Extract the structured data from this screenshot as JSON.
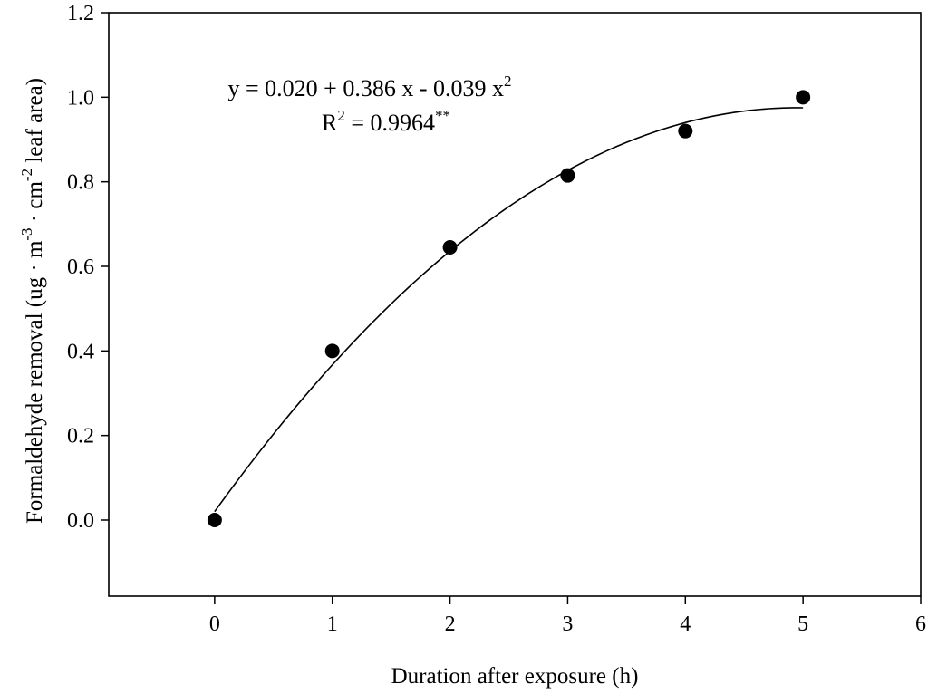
{
  "chart_data": {
    "type": "scatter",
    "title": "",
    "xlabel": "Duration after exposure (h)",
    "ylabel": {
      "prefix": "Formaldehyde removal (ug · m",
      "exp1": "-3",
      "middle": " · cm",
      "exp2": "-2",
      "suffix": " leaf area)"
    },
    "xlim": [
      -0.9,
      6
    ],
    "ylim": [
      -0.18,
      1.2
    ],
    "xticks": [
      0,
      1,
      2,
      3,
      4,
      5,
      6
    ],
    "yticks": [
      0.0,
      0.2,
      0.4,
      0.6,
      0.8,
      1.0,
      1.2
    ],
    "xtick_labels": [
      "0",
      "1",
      "2",
      "3",
      "4",
      "5",
      "6"
    ],
    "ytick_labels": [
      "0.0",
      "0.2",
      "0.4",
      "0.6",
      "0.8",
      "1.0",
      "1.2"
    ],
    "grid": false,
    "legend": "none",
    "series": [
      {
        "x": [
          0,
          1,
          2,
          3,
          4,
          5
        ],
        "y": [
          0.0,
          0.4,
          0.645,
          0.815,
          0.92,
          1.0
        ],
        "marker": "filled-circle",
        "color": "#000000"
      }
    ],
    "fit": {
      "type": "quadratic",
      "coefficients": [
        0.02,
        0.386,
        -0.039
      ],
      "x_range": [
        0,
        5
      ],
      "color": "#000000",
      "equation": {
        "prefix": "y = 0.020 + 0.386 x - 0.039 x",
        "exp": "2"
      },
      "r2": {
        "prefix": "R",
        "exp": "2",
        "value": " = 0.9964",
        "significance": "**"
      }
    }
  }
}
